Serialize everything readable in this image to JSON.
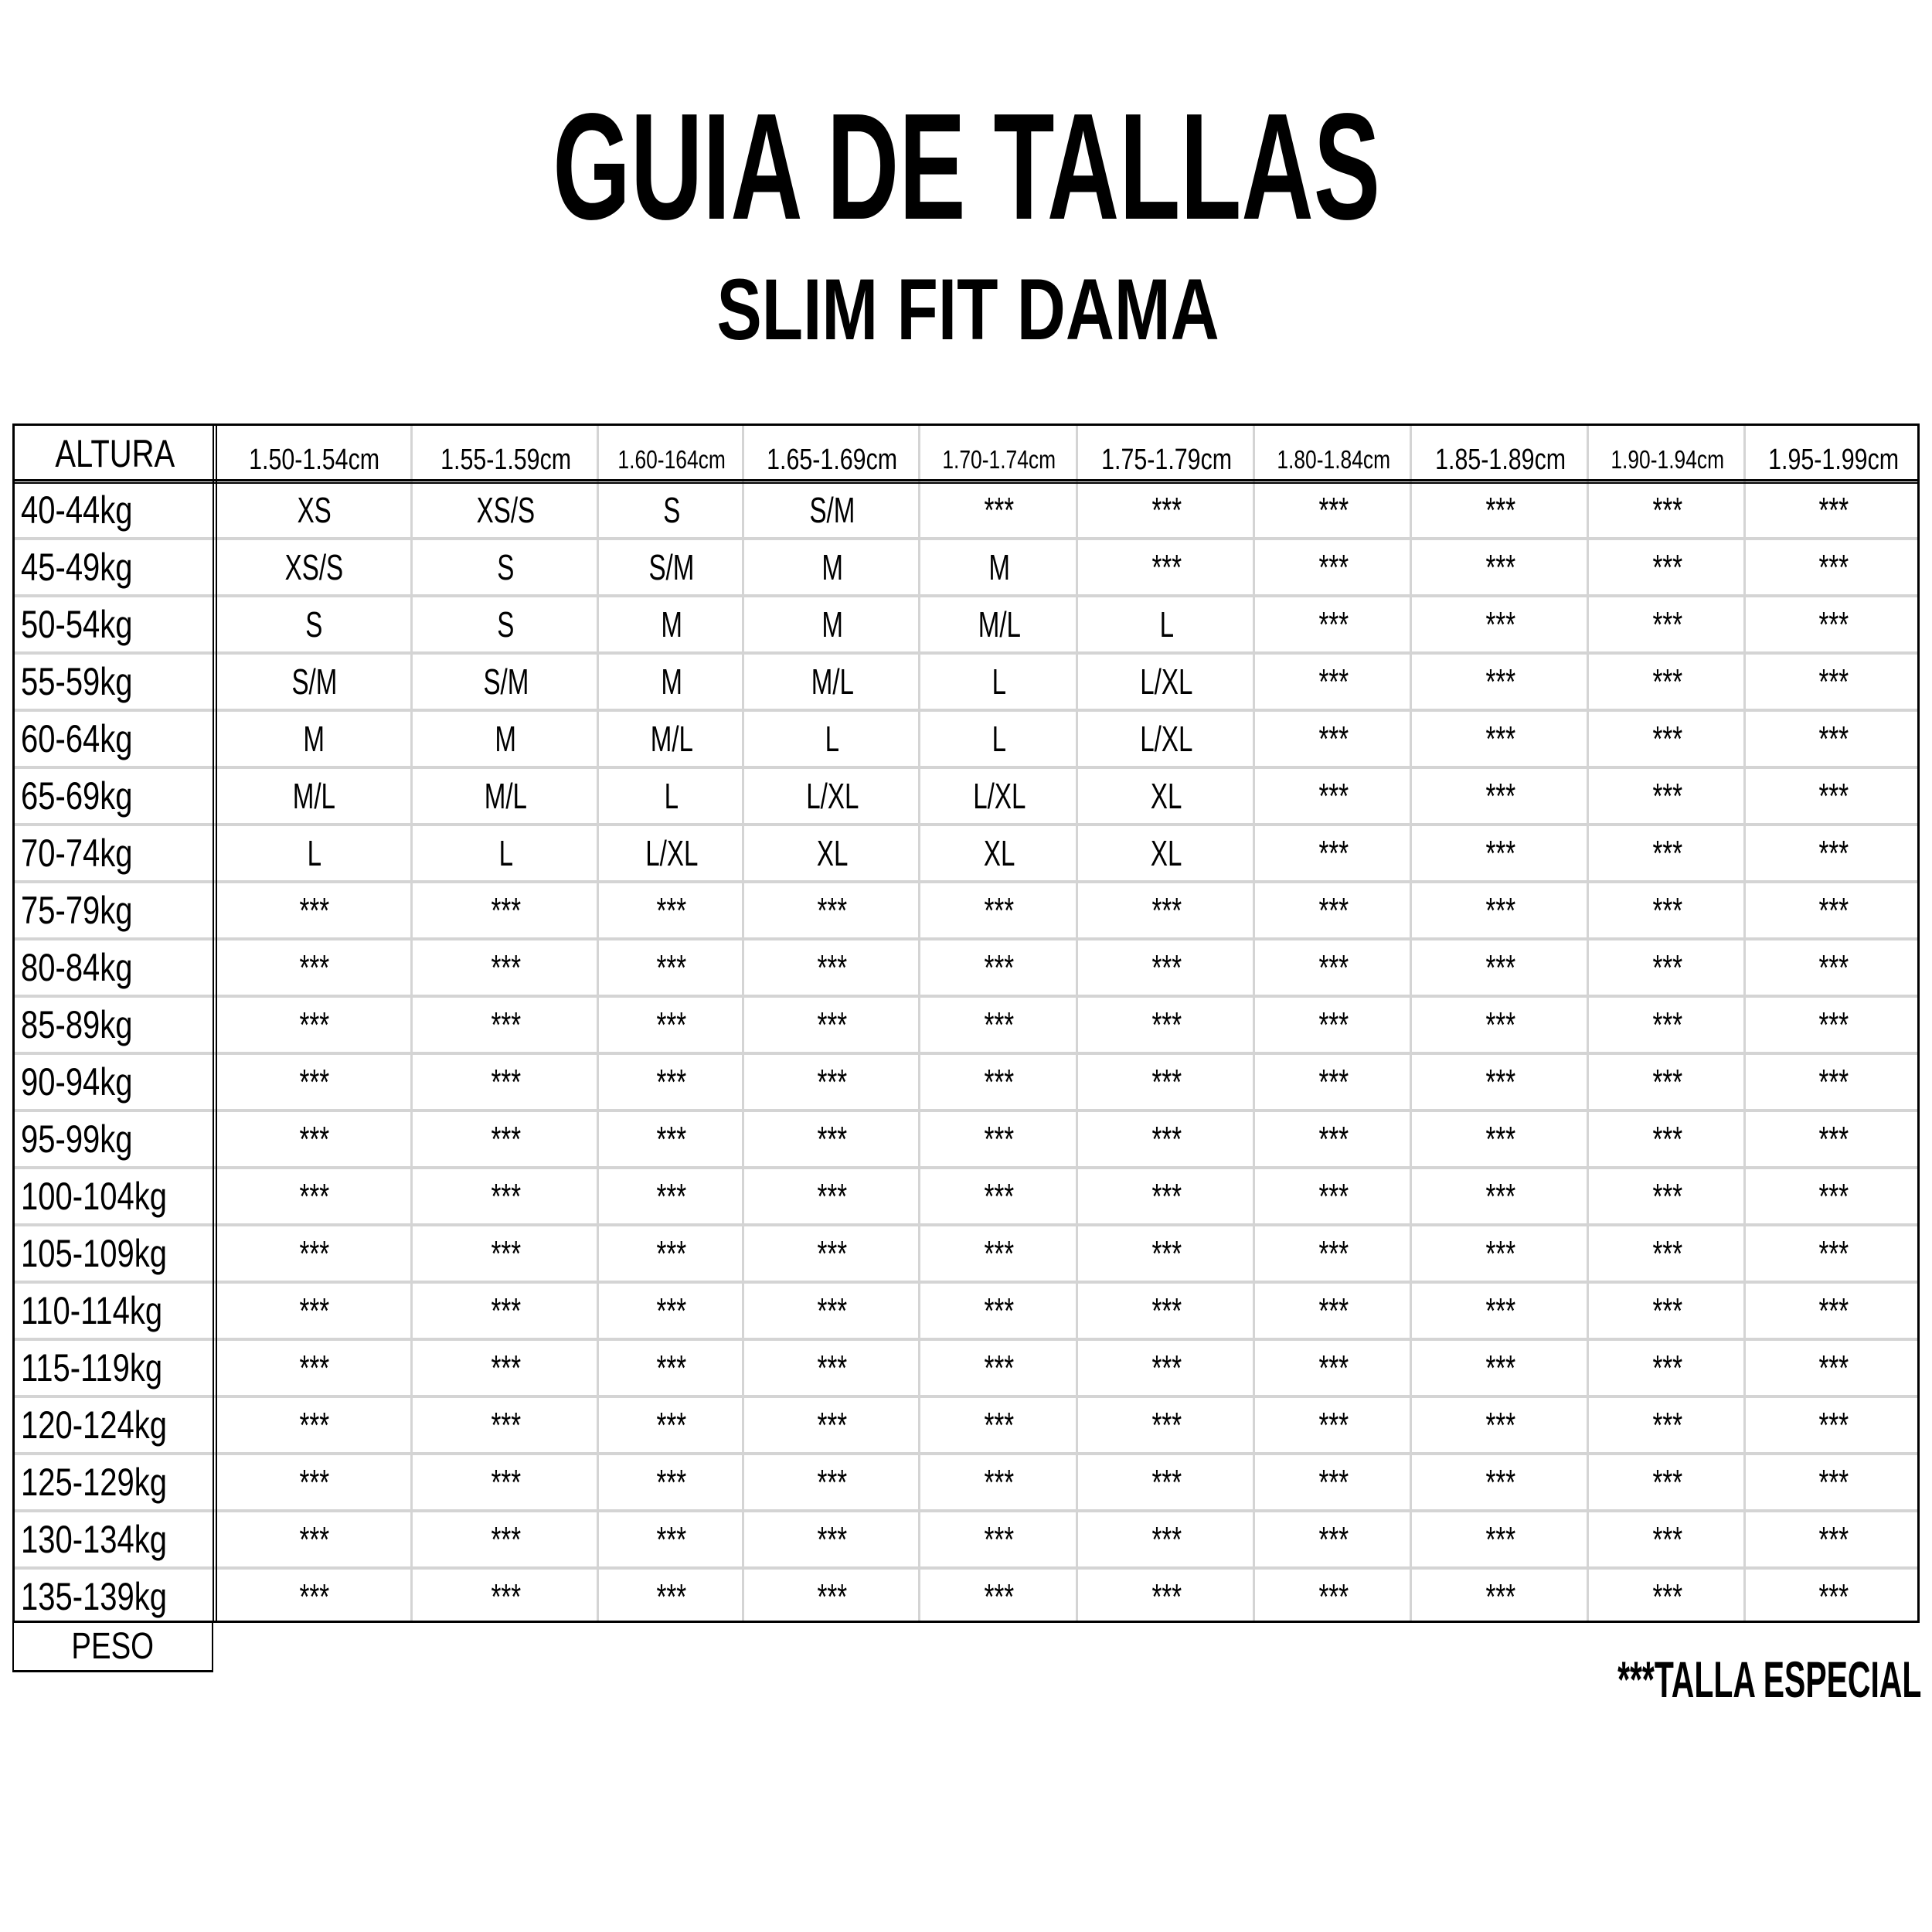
{
  "title": "GUIA DE TALLAS",
  "subtitle": "SLIM FIT DAMA",
  "table": {
    "corner_label": "ALTURA",
    "footer_label": "PESO",
    "columns": [
      "1.50-1.54cm",
      "1.55-1.59cm",
      "1.60-164cm",
      "1.65-1.69cm",
      "1.70-1.74cm",
      "1.75-1.79cm",
      "1.80-1.84cm",
      "1.85-1.89cm",
      "1.90-1.94cm",
      "1.95-1.99cm"
    ],
    "rows": [
      {
        "label": "40-44kg",
        "cells": [
          "XS",
          "XS/S",
          "S",
          "S/M",
          "***",
          "***",
          "***",
          "***",
          "***",
          "***"
        ]
      },
      {
        "label": "45-49kg",
        "cells": [
          "XS/S",
          "S",
          "S/M",
          "M",
          "M",
          "***",
          "***",
          "***",
          "***",
          "***"
        ]
      },
      {
        "label": "50-54kg",
        "cells": [
          "S",
          "S",
          "M",
          "M",
          "M/L",
          "L",
          "***",
          "***",
          "***",
          "***"
        ]
      },
      {
        "label": "55-59kg",
        "cells": [
          "S/M",
          "S/M",
          "M",
          "M/L",
          "L",
          "L/XL",
          "***",
          "***",
          "***",
          "***"
        ]
      },
      {
        "label": "60-64kg",
        "cells": [
          "M",
          "M",
          "M/L",
          "L",
          "L",
          "L/XL",
          "***",
          "***",
          "***",
          "***"
        ]
      },
      {
        "label": "65-69kg",
        "cells": [
          "M/L",
          "M/L",
          "L",
          "L/XL",
          "L/XL",
          "XL",
          "***",
          "***",
          "***",
          "***"
        ]
      },
      {
        "label": "70-74kg",
        "cells": [
          "L",
          "L",
          "L/XL",
          "XL",
          "XL",
          "XL",
          "***",
          "***",
          "***",
          "***"
        ]
      },
      {
        "label": "75-79kg",
        "cells": [
          "***",
          "***",
          "***",
          "***",
          "***",
          "***",
          "***",
          "***",
          "***",
          "***"
        ]
      },
      {
        "label": "80-84kg",
        "cells": [
          "***",
          "***",
          "***",
          "***",
          "***",
          "***",
          "***",
          "***",
          "***",
          "***"
        ]
      },
      {
        "label": "85-89kg",
        "cells": [
          "***",
          "***",
          "***",
          "***",
          "***",
          "***",
          "***",
          "***",
          "***",
          "***"
        ]
      },
      {
        "label": "90-94kg",
        "cells": [
          "***",
          "***",
          "***",
          "***",
          "***",
          "***",
          "***",
          "***",
          "***",
          "***"
        ]
      },
      {
        "label": "95-99kg",
        "cells": [
          "***",
          "***",
          "***",
          "***",
          "***",
          "***",
          "***",
          "***",
          "***",
          "***"
        ]
      },
      {
        "label": "100-104kg",
        "cells": [
          "***",
          "***",
          "***",
          "***",
          "***",
          "***",
          "***",
          "***",
          "***",
          "***"
        ]
      },
      {
        "label": "105-109kg",
        "cells": [
          "***",
          "***",
          "***",
          "***",
          "***",
          "***",
          "***",
          "***",
          "***",
          "***"
        ]
      },
      {
        "label": "110-114kg",
        "cells": [
          "***",
          "***",
          "***",
          "***",
          "***",
          "***",
          "***",
          "***",
          "***",
          "***"
        ]
      },
      {
        "label": "115-119kg",
        "cells": [
          "***",
          "***",
          "***",
          "***",
          "***",
          "***",
          "***",
          "***",
          "***",
          "***"
        ]
      },
      {
        "label": "120-124kg",
        "cells": [
          "***",
          "***",
          "***",
          "***",
          "***",
          "***",
          "***",
          "***",
          "***",
          "***"
        ]
      },
      {
        "label": "125-129kg",
        "cells": [
          "***",
          "***",
          "***",
          "***",
          "***",
          "***",
          "***",
          "***",
          "***",
          "***"
        ]
      },
      {
        "label": "130-134kg",
        "cells": [
          "***",
          "***",
          "***",
          "***",
          "***",
          "***",
          "***",
          "***",
          "***",
          "***"
        ]
      },
      {
        "label": "135-139kg",
        "cells": [
          "***",
          "***",
          "***",
          "***",
          "***",
          "***",
          "***",
          "***",
          "***",
          "***"
        ]
      }
    ]
  },
  "legend_note": "***TALLA ESPECIAL"
}
